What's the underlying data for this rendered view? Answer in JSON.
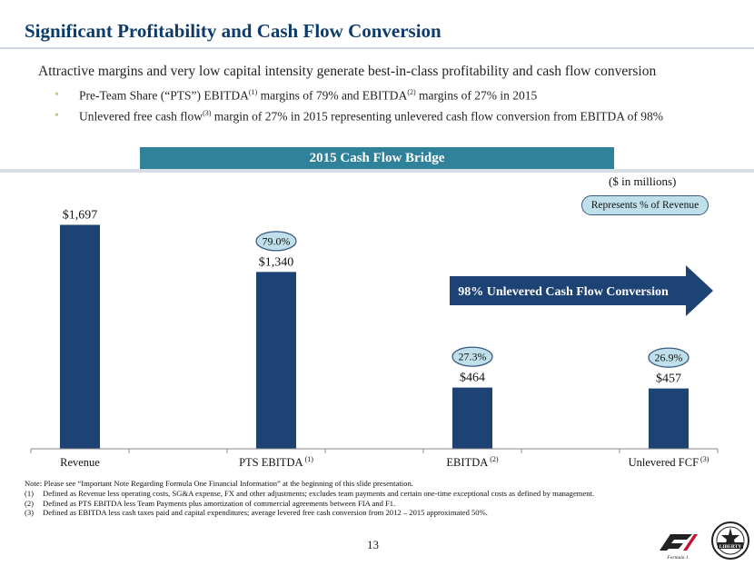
{
  "header": {
    "title": "Significant Profitability and Cash Flow Conversion"
  },
  "intro": "Attractive margins and very low capital intensity generate best-in-class profitability and cash flow conversion",
  "bullets": [
    {
      "t1": "Pre-Team Share (“PTS”) EBITDA",
      "s1": "(1)",
      "t2": " margins of 79% and EBITDA",
      "s2": "(2)",
      "t3": " margins of 27% in 2015"
    },
    {
      "t1": "Unlevered free cash flow",
      "s1": "(3)",
      "t2": " margin of 27% in 2015 representing unlevered cash flow conversion from EBITDA of 98%"
    }
  ],
  "chart_header": "2015 Cash Flow Bridge",
  "units_label": "($ in millions)",
  "pct_legend": "Represents % of Revenue",
  "arrow_label": "98% Unlevered Cash Flow Conversion",
  "chart_data": {
    "type": "bar",
    "title": "2015 Cash Flow Bridge",
    "ylabel": "$ in millions",
    "ylim": [
      0,
      1900
    ],
    "categories": [
      "Revenue",
      "PTS EBITDA",
      "EBITDA",
      "Unlevered FCF"
    ],
    "category_superscripts": [
      "",
      "(1)",
      "(2)",
      "(3)"
    ],
    "values": [
      1697,
      1340,
      464,
      457
    ],
    "value_labels": [
      "$1,697",
      "$1,340",
      "$464",
      "$457"
    ],
    "margin_labels": [
      "",
      "79.0%",
      "27.3%",
      "26.9%"
    ],
    "bar_color": "#1d4274",
    "bubble_color": "#bfe0ea",
    "arrow_color": "#1d4274"
  },
  "notes": [
    {
      "num": "",
      "text": "Note: Please see “Important Note Regarding Formula One Financial Information” at the beginning of this slide presentation."
    },
    {
      "num": "(1)",
      "text": "Defined as Revenue less operating costs, SG&A expense, FX and other adjustments; excludes team payments and certain one-time exceptional costs as defined by management."
    },
    {
      "num": "(2)",
      "text": "Defined as PTS EBITDA less Team Payments plus amortization of commercial agreements between FIA and F1."
    },
    {
      "num": "(3)",
      "text": "Defined as EBITDA less cash taxes paid and capital expenditures; average levered free cash conversion from 2012 – 2015 approximated 50%."
    }
  ],
  "page_number": "13",
  "logos": {
    "f1_caption": "Formula 1",
    "liberty_text": "LIBERTY"
  }
}
